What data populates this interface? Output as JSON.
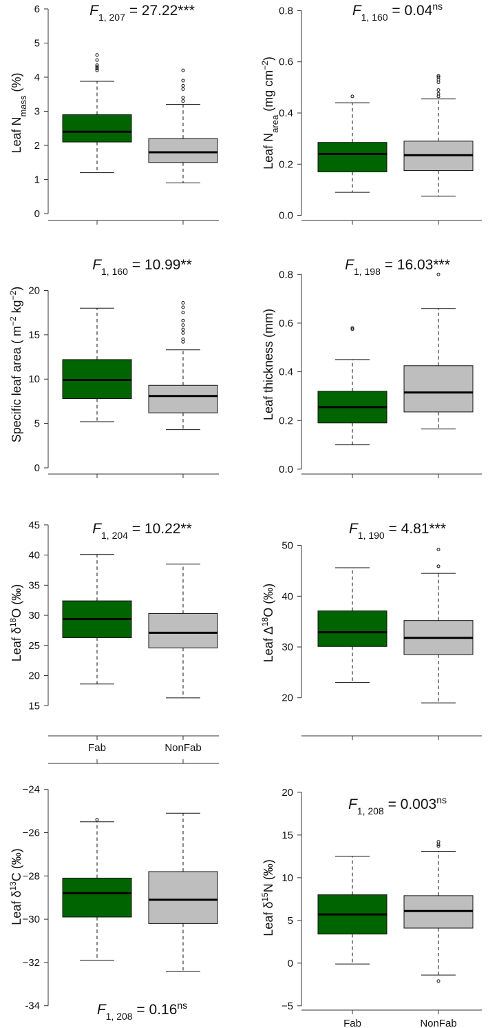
{
  "groups": [
    "Fab",
    "NonFab"
  ],
  "colors": {
    "Fab": "#006400",
    "NonFab": "#bebebe",
    "axis": "#333333"
  },
  "chart_data": [
    {
      "type": "boxplot",
      "ylabel": {
        "pre": "Leaf N",
        "sub": "mass",
        "post": " (%)"
      },
      "stat": {
        "pre": "F",
        "sub": "1, 207",
        "post": " = 27.22***",
        "sup": ""
      },
      "ylim": [
        -0.2,
        6.1
      ],
      "yticks": [
        0,
        1,
        2,
        3,
        4,
        5,
        6
      ],
      "yticklabels": [
        "0",
        "1",
        "2",
        "3",
        "4",
        "5",
        "6"
      ],
      "boxes": [
        {
          "group": "Fab",
          "whisker_low": 1.2,
          "q1": 2.1,
          "median": 2.4,
          "q3": 2.9,
          "whisker_high": 3.88,
          "outliers": [
            4.2,
            4.25,
            4.3,
            4.35,
            4.5,
            4.65
          ]
        },
        {
          "group": "NonFab",
          "whisker_low": 0.9,
          "q1": 1.5,
          "median": 1.8,
          "q3": 2.2,
          "whisker_high": 3.2,
          "outliers": [
            3.3,
            3.4,
            3.65,
            3.75,
            3.9,
            4.2
          ]
        }
      ]
    },
    {
      "type": "boxplot",
      "ylabel": {
        "pre": "Leaf N",
        "sub": "area",
        "post": " (mg  cm",
        "sup": "−2",
        "post2": ")"
      },
      "stat": {
        "pre": "F",
        "sub": "1, 160",
        "post": " = 0.04",
        "sup": "ns"
      },
      "ylim": [
        -0.02,
        0.82
      ],
      "yticks": [
        0,
        0.2,
        0.4,
        0.6,
        0.8
      ],
      "yticklabels": [
        "0.0",
        "0.2",
        "0.4",
        "0.6",
        "0.8"
      ],
      "boxes": [
        {
          "group": "Fab",
          "whisker_low": 0.09,
          "q1": 0.17,
          "median": 0.24,
          "q3": 0.285,
          "whisker_high": 0.44,
          "outliers": [
            0.465
          ]
        },
        {
          "group": "NonFab",
          "whisker_low": 0.075,
          "q1": 0.175,
          "median": 0.235,
          "q3": 0.29,
          "whisker_high": 0.455,
          "outliers": [
            0.465,
            0.475,
            0.49,
            0.52,
            0.53,
            0.54,
            0.545
          ]
        }
      ]
    },
    {
      "type": "boxplot",
      "ylabel": {
        "pre": "Specific leaf area ( m",
        "sup": "−2",
        "mid": " kg",
        "sup2": "−2",
        "post": ")"
      },
      "stat": {
        "pre": "F",
        "sub": "1, 160",
        "post": " = 10.99**",
        "sup": ""
      },
      "ylim": [
        -0.7,
        24.0
      ],
      "yticks": [
        0,
        5,
        10,
        15,
        20
      ],
      "yticklabels": [
        "0",
        "5",
        "10",
        "15",
        "20"
      ],
      "boxes": [
        {
          "group": "Fab",
          "whisker_low": 5.2,
          "q1": 7.8,
          "median": 9.9,
          "q3": 12.2,
          "whisker_high": 18.0,
          "outliers": []
        },
        {
          "group": "NonFab",
          "whisker_low": 4.3,
          "q1": 6.2,
          "median": 8.1,
          "q3": 9.3,
          "whisker_high": 13.3,
          "outliers": [
            14.2,
            14.5,
            15.2,
            15.6,
            16.1,
            16.6,
            17.5,
            18.1,
            18.6
          ]
        }
      ]
    },
    {
      "type": "boxplot",
      "ylabel": {
        "pre": "Leaf thickness (mm)"
      },
      "stat": {
        "pre": "F",
        "sub": "1, 198",
        "post": " = 16.03***",
        "sup": ""
      },
      "ylim": [
        -0.02,
        0.88
      ],
      "yticks": [
        0,
        0.2,
        0.4,
        0.6,
        0.8
      ],
      "yticklabels": [
        "0.0",
        "0.2",
        "0.4",
        "0.6",
        "0.8"
      ],
      "boxes": [
        {
          "group": "Fab",
          "whisker_low": 0.1,
          "q1": 0.19,
          "median": 0.255,
          "q3": 0.32,
          "whisker_high": 0.45,
          "outliers": [
            0.575,
            0.58
          ]
        },
        {
          "group": "NonFab",
          "whisker_low": 0.165,
          "q1": 0.235,
          "median": 0.315,
          "q3": 0.425,
          "whisker_high": 0.66,
          "outliers": [
            0.8
          ]
        }
      ]
    },
    {
      "type": "boxplot",
      "ylabel": {
        "pre": "Leaf δ",
        "sup": "18",
        "post": "O (‰)"
      },
      "stat": {
        "pre": "F",
        "sub": "1, 204",
        "post": " = 10.22**",
        "sup": ""
      },
      "ylim": [
        10.0,
        47.5
      ],
      "yticks": [
        15,
        20,
        25,
        30,
        35,
        40,
        45
      ],
      "yticklabels": [
        "15",
        "20",
        "25",
        "30",
        "35",
        "40",
        "45"
      ],
      "boxes": [
        {
          "group": "Fab",
          "whisker_low": 18.6,
          "q1": 26.3,
          "median": 29.4,
          "q3": 32.4,
          "whisker_high": 40.1,
          "outliers": []
        },
        {
          "group": "NonFab",
          "whisker_low": 16.3,
          "q1": 24.6,
          "median": 27.1,
          "q3": 30.3,
          "whisker_high": 38.5,
          "outliers": []
        }
      ]
    },
    {
      "type": "boxplot",
      "ylabel": {
        "pre": "Leaf Δ",
        "sup": "18",
        "post": "O (‰)"
      },
      "stat": {
        "pre": "F",
        "sub": "1, 190",
        "post": " = 4.81***",
        "sup": ""
      },
      "ylim": [
        12.5,
        57.0
      ],
      "yticks": [
        20,
        30,
        40,
        50
      ],
      "yticklabels": [
        "20",
        "30",
        "40",
        "50"
      ],
      "boxes": [
        {
          "group": "Fab",
          "whisker_low": 23.0,
          "q1": 30.1,
          "median": 32.9,
          "q3": 37.1,
          "whisker_high": 45.6,
          "outliers": []
        },
        {
          "group": "NonFab",
          "whisker_low": 19.0,
          "q1": 28.5,
          "median": 31.8,
          "q3": 35.2,
          "whisker_high": 44.5,
          "outliers": [
            45.9,
            49.2
          ]
        }
      ]
    },
    {
      "type": "boxplot",
      "xaxis_position": "top",
      "ylabel": {
        "pre": "Leaf δ",
        "sup": "13",
        "post": "C (‰)"
      },
      "stat": {
        "pre": "F",
        "sub": "1, 208",
        "post": " = 0.16",
        "sup": "ns"
      },
      "stat_position": "bottom",
      "ylim": [
        -34.2,
        -22.8
      ],
      "yticks": [
        -34,
        -32,
        -30,
        -28,
        -26,
        -24
      ],
      "yticklabels": [
        "-34",
        "−32",
        "−30",
        "−28",
        "−26",
        "−24"
      ],
      "boxes": [
        {
          "group": "Fab",
          "whisker_low": -31.9,
          "q1": -29.9,
          "median": -28.8,
          "q3": -28.1,
          "whisker_high": -25.5,
          "outliers": [
            -25.4
          ]
        },
        {
          "group": "NonFab",
          "whisker_low": -32.4,
          "q1": -30.2,
          "median": -29.1,
          "q3": -27.8,
          "whisker_high": -25.1,
          "outliers": []
        }
      ]
    },
    {
      "type": "boxplot",
      "ylabel": {
        "pre": "Leaf δ",
        "sup": "15",
        "post": "N (‰)"
      },
      "stat": {
        "pre": "F",
        "sub": "1, 208",
        "post": " = 0.003",
        "sup": "ns"
      },
      "ylim": [
        -5.5,
        20.8
      ],
      "yticks": [
        -5,
        0,
        5,
        10,
        15,
        20
      ],
      "yticklabels": [
        "−5",
        "0",
        "5",
        "10",
        "15",
        "20"
      ],
      "boxes": [
        {
          "group": "Fab",
          "whisker_low": -0.1,
          "q1": 3.4,
          "median": 5.7,
          "q3": 8.0,
          "whisker_high": 12.5,
          "outliers": []
        },
        {
          "group": "NonFab",
          "whisker_low": -1.4,
          "q1": 4.1,
          "median": 6.1,
          "q3": 7.9,
          "whisker_high": 13.1,
          "outliers": [
            -2.1,
            13.7,
            13.9,
            14.2
          ]
        }
      ]
    }
  ]
}
